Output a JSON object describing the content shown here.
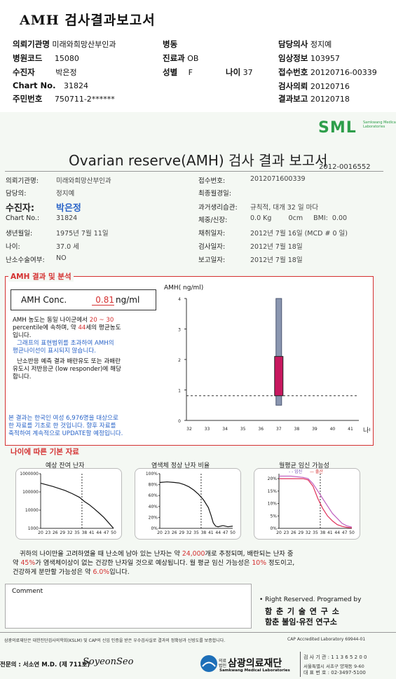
{
  "doc_title": "AMH 검사결과보고서",
  "header": {
    "r1": {
      "l1": "의뢰기관명",
      "v1": "미래와희망산부인과",
      "l2": "병동",
      "l3": "담당의사",
      "v3": "정지예"
    },
    "r2": {
      "l1": "병원코드",
      "v1": "15080",
      "l2": "진료과",
      "v2": "OB",
      "l3": "임상정보",
      "v3": "103957"
    },
    "r3": {
      "l1": "수진자",
      "v1": "박은정",
      "l2": "성별",
      "v2": "F",
      "l4": "나이",
      "v4": "37",
      "l3": "접수번호",
      "v3": "20120716-00339"
    },
    "r4": {
      "l1": "Chart No.",
      "v1": "31824",
      "l3": "검사의뢰",
      "v3": "20120716"
    },
    "r5": {
      "l1": "주민번호",
      "v1": "750711-2******",
      "l3": "결과보고",
      "v3": "20120718"
    }
  },
  "logo": {
    "text": "SML",
    "sub": "Samkwang Medical Laboratories"
  },
  "report": {
    "title": "Ovarian reserve(AMH) 검사 결과 보고서",
    "number": "2012-0016552",
    "left": [
      {
        "label": "의뢰기관명:",
        "value": "미래와희망산부인과"
      },
      {
        "label": "담당의:",
        "value": "정지예"
      },
      {
        "label": "수진자:",
        "value": "박은정"
      },
      {
        "label": "Chart No.:",
        "value": "31824"
      },
      {
        "label": "생년월일:",
        "value": "1975년 7월 11일"
      },
      {
        "label": "나이:",
        "value": "37.0 세"
      },
      {
        "label": "난소수술여부:",
        "value": "NO"
      }
    ],
    "right": [
      {
        "label": "접수번호:",
        "value": "2012071600339"
      },
      {
        "label": "최종월경일:",
        "value": ""
      },
      {
        "label": "과거생리습관:",
        "value": "규칙적, 대개 32 일 마다"
      },
      {
        "label": "체중/신장:",
        "value": "0.0 Kg        0cm     BMI:  0.00"
      },
      {
        "label": "채취일자:",
        "value": "2012년 7월 16일  (MCD # 0 일)"
      },
      {
        "label": "검사일자:",
        "value": "2012년 7월 18일"
      },
      {
        "label": "보고일자:",
        "value": "2012년 7월 18일"
      }
    ]
  },
  "amh": {
    "section_title": "AMH 결과 및 분석",
    "conc_label": "AMH Conc.",
    "conc_value": "0.81",
    "conc_unit": "ng/ml",
    "desc": {
      "l1a": "AMH 농도는 동일 나이군에서 ",
      "l1b": "20 ~ 30",
      "l2a": "percentile에 속하며, 약 ",
      "l2b": "44",
      "l2c": "세의 평균농도",
      "l3": "입니다.",
      "l4": "그래프의 표현범위를 초과하여 AMH의",
      "l5": "평균나이선이 표시되지 않습니다.",
      "l6": "난소반응 예측 결과 배란유도 또는 과배란",
      "l7": "유도시 저반응군 (low responder)에 해당",
      "l8": "합니다.",
      "n1": "본 결과는 한국인 여성 6,976명을 대상으로",
      "n2": "한 자료를 기초로 한 것입니다. 향후 자료를",
      "n3": "축적하여 계속적으로 UPDATE할 예정입니다."
    }
  },
  "chart_data": [
    {
      "type": "range-bar",
      "title": "",
      "ylabel": "AMH( ng/ml)",
      "xlabel": "나이",
      "x_ticks": [
        32,
        33,
        34,
        35,
        36,
        37,
        38,
        39,
        40,
        41
      ],
      "y_ticks": [
        0,
        1,
        2,
        3,
        4
      ],
      "ylim": [
        0,
        4
      ],
      "grid": false,
      "range": {
        "x": 37,
        "low": 0.5,
        "high": 4.0
      },
      "box": {
        "x": 37,
        "low": 0.81,
        "high": 2.1
      },
      "reference_line_y": 0.81
    },
    {
      "type": "line",
      "title": "예상 잔여 난자",
      "x_ticks": [
        "20",
        "23",
        "26",
        "29",
        "32",
        "35",
        "38",
        "41",
        "44",
        "47",
        "50"
      ],
      "y_ticks": [
        "1000",
        "10000",
        "100000",
        "1000000"
      ],
      "ylim": [
        1000,
        1000000
      ],
      "log_scale": true,
      "marker_x": 37,
      "x": [
        20,
        25,
        30,
        33,
        36,
        38,
        40,
        42,
        44,
        46,
        48,
        50
      ],
      "y": [
        300000,
        200000,
        120000,
        80000,
        50000,
        30000,
        20000,
        12000,
        7000,
        4000,
        2000,
        1000
      ]
    },
    {
      "type": "line",
      "title": "염색체 정상 난자 비율",
      "x_ticks": [
        "20",
        "23",
        "26",
        "29",
        "32",
        "35",
        "38",
        "41",
        "44",
        "47",
        "50"
      ],
      "y_ticks": [
        "0%",
        "20%",
        "40%",
        "60%",
        "80%",
        "100%"
      ],
      "ylim": [
        0,
        100
      ],
      "marker_x": 37,
      "x": [
        20,
        23,
        26,
        28,
        30,
        32,
        34,
        36,
        38,
        40,
        41,
        42,
        43,
        44,
        46,
        48,
        50
      ],
      "y": [
        84,
        85,
        84,
        83,
        80,
        76,
        70,
        62,
        52,
        38,
        25,
        10,
        4,
        3,
        5,
        3,
        4
      ]
    },
    {
      "type": "line",
      "title": "월평균 임신 가능성",
      "legend": [
        "임신",
        "출산"
      ],
      "x_ticks": [
        "20",
        "23",
        "26",
        "29",
        "32",
        "35",
        "38",
        "41",
        "44",
        "47",
        "50"
      ],
      "y_ticks": [
        "0%",
        "5%",
        "10%",
        "15%",
        "20%"
      ],
      "ylim": [
        0,
        22
      ],
      "marker_x": 37,
      "series": [
        {
          "name": "임신",
          "x": [
            20,
            25,
            30,
            32,
            34,
            36,
            38,
            40,
            42,
            44,
            46,
            48,
            50
          ],
          "y": [
            21,
            21,
            20.5,
            20,
            18,
            15,
            12,
            9,
            6,
            4,
            2,
            1,
            0.5
          ]
        },
        {
          "name": "출산",
          "x": [
            20,
            25,
            30,
            32,
            34,
            36,
            38,
            40,
            42,
            44,
            46,
            48,
            50
          ],
          "y": [
            20,
            20,
            20,
            19.5,
            17,
            12,
            8,
            5,
            3,
            1.5,
            0.8,
            0.4,
            0.2
          ]
        }
      ]
    }
  ],
  "age_section": {
    "title": "나이에 따른 기본 자료"
  },
  "summary": {
    "s1a": "귀하의 나이만을 고려하였을 때 난소에 남아 있는 난자는 약 ",
    "s1b": "24,000",
    "s1c": "개로 추정되며, 배란되는 난자 중",
    "s2a": "약 ",
    "s2b": "45%",
    "s2c": "가 염색체이상이 없는 건강한 난자일 것으로 예상됩니다. 월 평균 임신 가능성은 ",
    "s2d": "10%",
    "s2e": " 정도이고,",
    "s3a": "건강하게 분만할 가능성은 약 ",
    "s3b": "6.0%",
    "s3c": "입니다."
  },
  "comment": {
    "label": "Comment"
  },
  "rights": {
    "l1": "• Right Reserved. Programed by",
    "l2": "함 춘 기 술 연 구 소",
    "l3": "함춘 불임·유전 연구소"
  },
  "footer": {
    "cert": "삼광의료재단은 대한진단검사의학회(KSLM) 및 CAP의 신임 인증을 받은 우수검사실로 결과의 정확성과 신빙도를 보증합니다.",
    "cap": "CAP Accredited Laboratory 69944-01",
    "doctor": "전문의 : 서소연 M.D. (제 711호)",
    "signature": "SoyeonSeo",
    "foundation_small": "의료법인",
    "foundation": "삼광의료재단",
    "foundation_en": "Samkwang Medical Laboratories",
    "info1": "검 사 기 관 : 1 1 3 6 5 2 0 0",
    "info2": "서울특별시 서초구 양재동 9-60",
    "info3": "대 표 번 호 : 02-3497-5100"
  }
}
